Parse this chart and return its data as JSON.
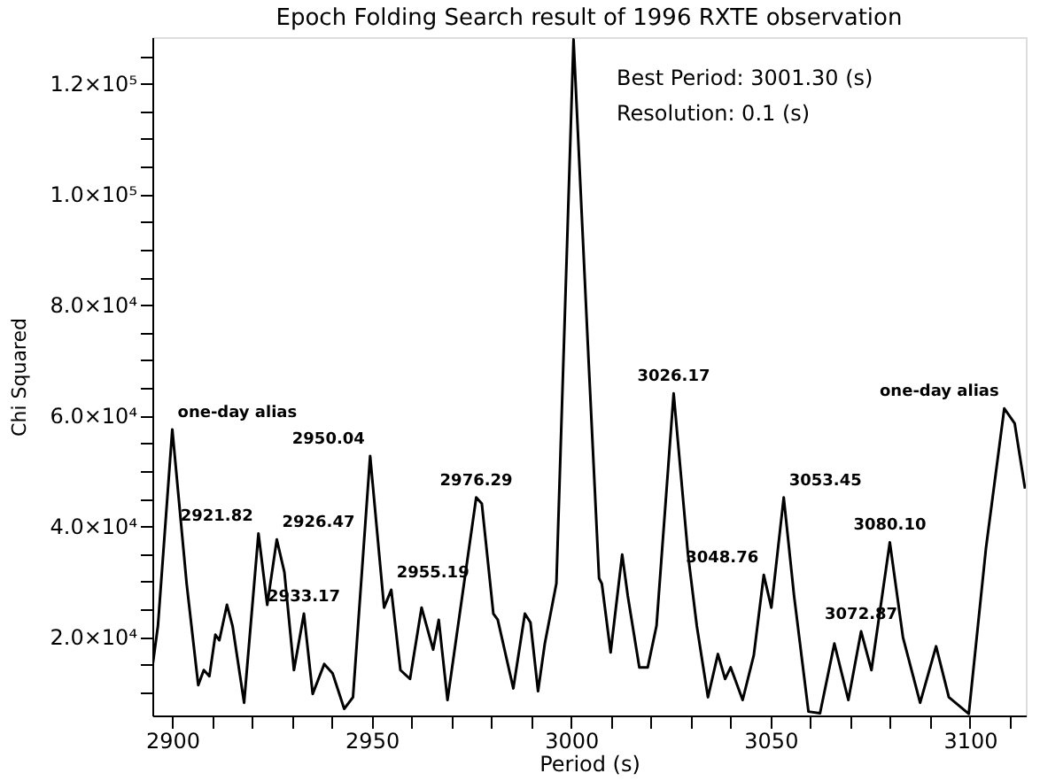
{
  "chart_data": {
    "type": "line",
    "title": "Epoch Folding Search result of 1996 RXTE observation",
    "xlabel": "Period (s)",
    "ylabel": "Chi Squared",
    "series": [
      {
        "color": "#000000",
        "x": [
          2895,
          2896.4,
          2900,
          2903.6,
          2906.5,
          2907.9,
          2909.3,
          2910.8,
          2911.8,
          2913.7,
          2915.1,
          2918,
          2921.6,
          2923.8,
          2926.2,
          2928.1,
          2930.5,
          2933.0,
          2935.2,
          2938.1,
          2940.2,
          2943.1,
          2945.3,
          2949.6,
          2953.1,
          2954.9,
          2957.2,
          2959.6,
          2962.5,
          2965.4,
          2966.8,
          2969.0,
          2976.2,
          2977.6,
          2980.5,
          2981.6,
          2985.5,
          2988.4,
          2989.8,
          2991.7,
          2993.4,
          2996.3,
          3000.6,
          3004.2,
          3007.0,
          3007.7,
          3009.9,
          3012.8,
          3014.2,
          3017.1,
          3019.2,
          3021.4,
          3025.7,
          3029.3,
          3031.5,
          3034.3,
          3036.8,
          3038.6,
          3040.0,
          3043.0,
          3045.8,
          3048.3,
          3050.2,
          3053.3,
          3055.9,
          3059.5,
          3062.4,
          3066.0,
          3069.5,
          3072.7,
          3075.3,
          3079.9,
          3083.2,
          3087.5,
          3091.5,
          3094.7,
          3099.7,
          3104.0,
          3108.6,
          3111.2,
          3113.8
        ],
        "values": [
          14500,
          22000,
          57500,
          29600,
          11300,
          14000,
          12900,
          20400,
          19400,
          25800,
          22000,
          8100,
          38700,
          25800,
          37600,
          31700,
          14000,
          24200,
          9700,
          15100,
          13400,
          7000,
          9100,
          52700,
          25300,
          28500,
          14000,
          12400,
          25300,
          17700,
          23100,
          8600,
          45200,
          44100,
          24200,
          23100,
          10700,
          24200,
          22600,
          10200,
          18800,
          29700,
          128000,
          72600,
          30600,
          29600,
          17200,
          34900,
          27400,
          14500,
          14500,
          22000,
          64000,
          34900,
          22000,
          9100,
          16900,
          12400,
          14500,
          8600,
          16700,
          31200,
          25300,
          45200,
          27400,
          6500,
          6200,
          18800,
          8600,
          21000,
          14000,
          37100,
          19900,
          8100,
          18300,
          9100,
          6100,
          36000,
          61300,
          58600,
          46800
        ]
      }
    ],
    "xlim": [
      2895,
      3114
    ],
    "ylim": [
      5800,
      128400
    ],
    "xticks": [
      {
        "value": 2900,
        "label": "2900"
      },
      {
        "value": 2910,
        "label": null
      },
      {
        "value": 2920,
        "label": null
      },
      {
        "value": 2930,
        "label": null
      },
      {
        "value": 2940,
        "label": null
      },
      {
        "value": 2950,
        "label": "2950"
      },
      {
        "value": 2960,
        "label": null
      },
      {
        "value": 2970,
        "label": null
      },
      {
        "value": 2980,
        "label": null
      },
      {
        "value": 2990,
        "label": null
      },
      {
        "value": 3000,
        "label": "3000"
      },
      {
        "value": 3010,
        "label": null
      },
      {
        "value": 3020,
        "label": null
      },
      {
        "value": 3030,
        "label": null
      },
      {
        "value": 3040,
        "label": null
      },
      {
        "value": 3050,
        "label": "3050"
      },
      {
        "value": 3060,
        "label": null
      },
      {
        "value": 3070,
        "label": null
      },
      {
        "value": 3080,
        "label": null
      },
      {
        "value": 3090,
        "label": null
      },
      {
        "value": 3100,
        "label": "3100"
      },
      {
        "value": 3110,
        "label": null
      }
    ],
    "yticks": [
      {
        "value": 10000,
        "label": null
      },
      {
        "value": 15000,
        "label": null
      },
      {
        "value": 20000,
        "label": "2.0×10⁴"
      },
      {
        "value": 25000,
        "label": null
      },
      {
        "value": 30000,
        "label": null
      },
      {
        "value": 35000,
        "label": null
      },
      {
        "value": 40000,
        "label": "4.0×10⁴"
      },
      {
        "value": 45000,
        "label": null
      },
      {
        "value": 50000,
        "label": null
      },
      {
        "value": 55000,
        "label": null
      },
      {
        "value": 60000,
        "label": "6.0×10⁴"
      },
      {
        "value": 65000,
        "label": null
      },
      {
        "value": 70000,
        "label": null
      },
      {
        "value": 75000,
        "label": null
      },
      {
        "value": 80000,
        "label": "8.0×10⁴"
      },
      {
        "value": 85000,
        "label": null
      },
      {
        "value": 90000,
        "label": null
      },
      {
        "value": 95000,
        "label": null
      },
      {
        "value": 100000,
        "label": "1.0×10⁵"
      },
      {
        "value": 105000,
        "label": null
      },
      {
        "value": 110000,
        "label": null
      },
      {
        "value": 115000,
        "label": null
      },
      {
        "value": 120000,
        "label": "1.2×10⁵"
      },
      {
        "value": 125000,
        "label": null
      }
    ],
    "grid": false,
    "marker": "none",
    "line_style": "solid",
    "annotations": [
      "Best Period: 3001.30 (s)",
      "Resolution: 0.1 (s)",
      {
        "text": "one-day alias",
        "x": 2900,
        "y": 57500
      },
      {
        "text": "2921.82",
        "x": 2921.6,
        "y": 38700
      },
      {
        "text": "2926.47",
        "x": 2926.2,
        "y": 37600
      },
      {
        "text": "2933.17",
        "x": 2933.0,
        "y": 24200
      },
      {
        "text": "2950.04",
        "x": 2949.6,
        "y": 52700
      },
      {
        "text": "2955.19",
        "x": 2954.9,
        "y": 28500
      },
      {
        "text": "2976.29",
        "x": 2976.2,
        "y": 45200
      },
      {
        "text": "3026.17",
        "x": 3025.7,
        "y": 64000
      },
      {
        "text": "3048.76",
        "x": 3048.3,
        "y": 31200
      },
      {
        "text": "3053.45",
        "x": 3053.3,
        "y": 45200
      },
      {
        "text": "3072.87",
        "x": 3072.7,
        "y": 21000
      },
      {
        "text": "3080.10",
        "x": 3079.9,
        "y": 37100
      },
      {
        "text": "one-day alias",
        "x": 3108.6,
        "y": 61300
      }
    ]
  }
}
